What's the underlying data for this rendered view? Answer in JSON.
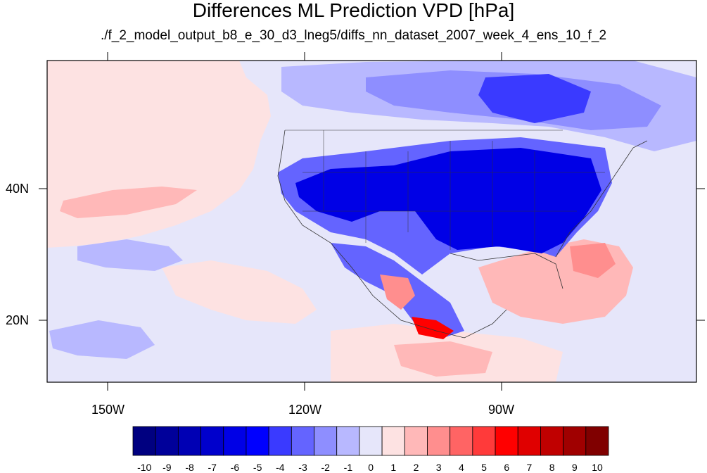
{
  "title": "Differences ML Prediction VPD [hPa]",
  "subtitle": "./f_2_model_output_b8_e_30_d3_lneg5/diffs_nn_dataset_2007_week_4_ens_10_f_2",
  "lat_labels": [
    "40N",
    "20N"
  ],
  "lon_labels": [
    "150W",
    "120W",
    "90W"
  ],
  "colorbar": {
    "labels": [
      "-10",
      "-9",
      "-8",
      "-7",
      "-6",
      "-5",
      "-4",
      "-3",
      "-2",
      "-1",
      "0",
      "1",
      "2",
      "3",
      "4",
      "5",
      "6",
      "7",
      "8",
      "9",
      "10"
    ],
    "colors": [
      "#000080",
      "#00009a",
      "#0000b4",
      "#0000cc",
      "#0000e6",
      "#0000ff",
      "#3a3aff",
      "#6464ff",
      "#8e8eff",
      "#b8b8ff",
      "#e6e6fa",
      "#fde2e2",
      "#ffb8b8",
      "#ff8e8e",
      "#ff6464",
      "#ff3a3a",
      "#ff0000",
      "#e00000",
      "#c00000",
      "#a00000",
      "#800000"
    ]
  },
  "map_regions": {
    "ocean_pos_color": "#fde2e2",
    "ocean_neutral_color": "#e6e6fa",
    "land_strong_neg_color": "#0000e6",
    "land_mid_neg_color": "#3a3aff",
    "land_light_neg_color": "#8e8eff",
    "pos_color": "#ff8e8e",
    "strong_pos_color": "#ff0000"
  }
}
